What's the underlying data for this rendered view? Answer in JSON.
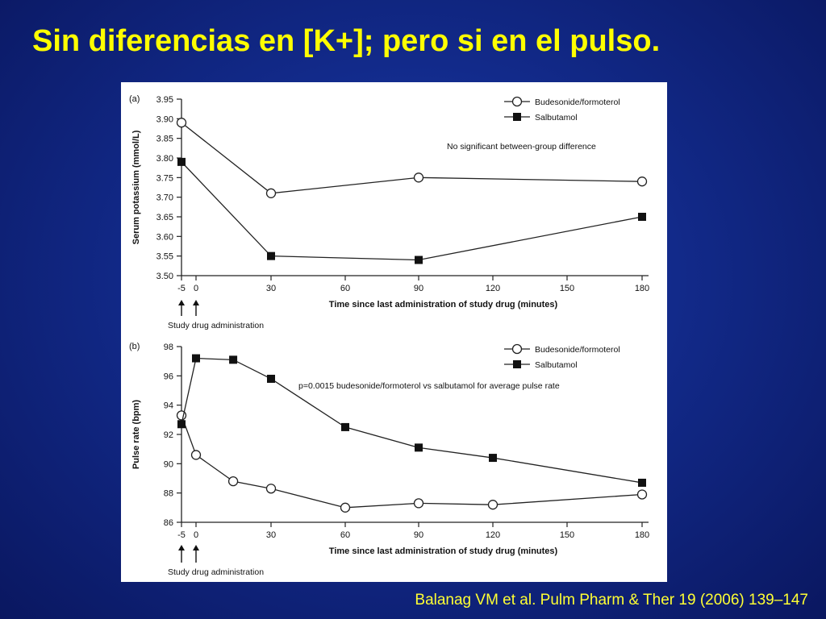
{
  "slide": {
    "title": "Sin diferencias en [K+]; pero si en el pulso.",
    "citation": "Balanag VM et al. Pulm Pharm & Ther 19 (2006) 139–147"
  },
  "chart_data": [
    {
      "type": "line",
      "panel_label": "(a)",
      "ylabel": "Serum potassium (mmol/L)",
      "xlabel": "Time since last administration of study drug (minutes)",
      "ylim": [
        3.5,
        3.95
      ],
      "xlim": [
        -5,
        180
      ],
      "xticks": [
        -5,
        0,
        30,
        60,
        90,
        120,
        150,
        180
      ],
      "yticks": [
        3.5,
        3.55,
        3.6,
        3.65,
        3.7,
        3.75,
        3.8,
        3.85,
        3.9,
        3.95
      ],
      "ytick_decimals": 2,
      "grid": false,
      "legend_position": "top-right",
      "annotation": "No significant between-group difference",
      "arrow_caption": "Study drug administration",
      "arrows_at": [
        -5,
        0
      ],
      "series": [
        {
          "name": "Budesonide/formoterol",
          "marker": "open-circle",
          "x": [
            -5,
            30,
            90,
            180
          ],
          "y": [
            3.89,
            3.71,
            3.75,
            3.74
          ]
        },
        {
          "name": "Salbutamol",
          "marker": "filled-square",
          "x": [
            -5,
            30,
            90,
            180
          ],
          "y": [
            3.79,
            3.55,
            3.54,
            3.65
          ]
        }
      ]
    },
    {
      "type": "line",
      "panel_label": "(b)",
      "ylabel": "Pulse rate (bpm)",
      "xlabel": "Time since last administration of study drug (minutes)",
      "ylim": [
        86,
        98
      ],
      "xlim": [
        -5,
        180
      ],
      "xticks": [
        -5,
        0,
        30,
        60,
        90,
        120,
        150,
        180
      ],
      "yticks": [
        86,
        88,
        90,
        92,
        94,
        96,
        98
      ],
      "ytick_decimals": 0,
      "grid": false,
      "legend_position": "top-right",
      "annotation": "p=0.0015 budesonide/formoterol vs salbutamol for average pulse rate",
      "arrow_caption": "Study drug administration",
      "arrows_at": [
        -5,
        0
      ],
      "series": [
        {
          "name": "Budesonide/formoterol",
          "marker": "open-circle",
          "x": [
            -5,
            0,
            15,
            30,
            60,
            90,
            120,
            180
          ],
          "y": [
            93.3,
            90.6,
            88.8,
            88.3,
            87.0,
            87.3,
            87.2,
            87.9
          ]
        },
        {
          "name": "Salbutamol",
          "marker": "filled-square",
          "x": [
            -5,
            0,
            15,
            30,
            60,
            90,
            120,
            180
          ],
          "y": [
            92.7,
            97.2,
            97.1,
            95.8,
            92.5,
            91.1,
            90.4,
            88.7
          ]
        }
      ]
    }
  ]
}
